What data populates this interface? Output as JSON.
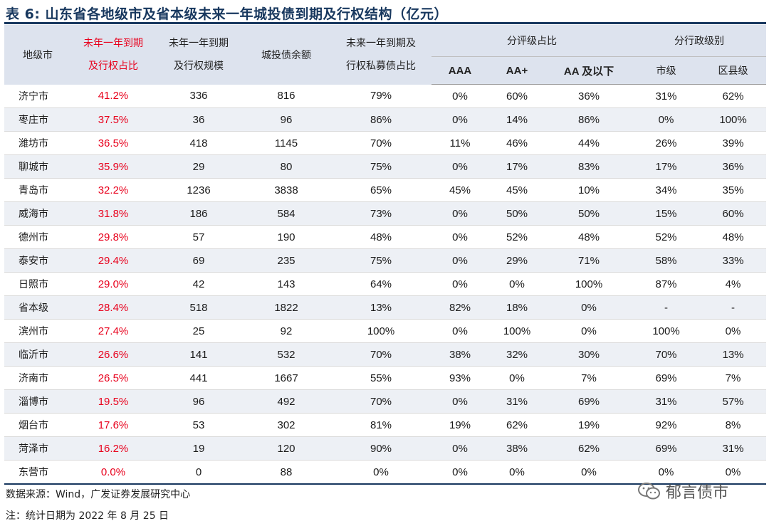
{
  "title": "表 6:  山东省各地级市及省本级未来一年城投债到期及行权结构（亿元）",
  "headers": {
    "city": "地级市",
    "ratio_line1": "未年一年到期",
    "ratio_line2": "及行权占比",
    "scale_line1": "未年一年到期",
    "scale_line2": "及行权规模",
    "balance": "城投债余额",
    "private_line1": "未来一年到期及",
    "private_line2": "行权私募债占比",
    "rating_group": "分评级占比",
    "rating_aaa": "AAA",
    "rating_aaplus": "AA+",
    "rating_aa_below": "AA 及以下",
    "admin_group": "分行政级别",
    "admin_city": "市级",
    "admin_county": "区县级"
  },
  "rows": [
    {
      "city": "济宁市",
      "ratio": "41.2%",
      "scale": "336",
      "balance": "816",
      "private": "79%",
      "aaa": "0%",
      "aaplus": "60%",
      "aabelow": "36%",
      "citylevel": "31%",
      "county": "62%"
    },
    {
      "city": "枣庄市",
      "ratio": "37.5%",
      "scale": "36",
      "balance": "96",
      "private": "86%",
      "aaa": "0%",
      "aaplus": "14%",
      "aabelow": "86%",
      "citylevel": "0%",
      "county": "100%"
    },
    {
      "city": "潍坊市",
      "ratio": "36.5%",
      "scale": "418",
      "balance": "1145",
      "private": "70%",
      "aaa": "11%",
      "aaplus": "46%",
      "aabelow": "44%",
      "citylevel": "26%",
      "county": "39%"
    },
    {
      "city": "聊城市",
      "ratio": "35.9%",
      "scale": "29",
      "balance": "80",
      "private": "75%",
      "aaa": "0%",
      "aaplus": "17%",
      "aabelow": "83%",
      "citylevel": "17%",
      "county": "36%"
    },
    {
      "city": "青岛市",
      "ratio": "32.2%",
      "scale": "1236",
      "balance": "3838",
      "private": "65%",
      "aaa": "45%",
      "aaplus": "45%",
      "aabelow": "10%",
      "citylevel": "34%",
      "county": "35%"
    },
    {
      "city": "威海市",
      "ratio": "31.8%",
      "scale": "186",
      "balance": "584",
      "private": "73%",
      "aaa": "0%",
      "aaplus": "50%",
      "aabelow": "50%",
      "citylevel": "15%",
      "county": "60%"
    },
    {
      "city": "德州市",
      "ratio": "29.8%",
      "scale": "57",
      "balance": "190",
      "private": "48%",
      "aaa": "0%",
      "aaplus": "52%",
      "aabelow": "48%",
      "citylevel": "52%",
      "county": "48%"
    },
    {
      "city": "泰安市",
      "ratio": "29.4%",
      "scale": "69",
      "balance": "235",
      "private": "75%",
      "aaa": "0%",
      "aaplus": "29%",
      "aabelow": "71%",
      "citylevel": "58%",
      "county": "33%"
    },
    {
      "city": "日照市",
      "ratio": "29.0%",
      "scale": "42",
      "balance": "143",
      "private": "64%",
      "aaa": "0%",
      "aaplus": "0%",
      "aabelow": "100%",
      "citylevel": "87%",
      "county": "4%"
    },
    {
      "city": "省本级",
      "ratio": "28.4%",
      "scale": "518",
      "balance": "1822",
      "private": "13%",
      "aaa": "82%",
      "aaplus": "18%",
      "aabelow": "0%",
      "citylevel": "-",
      "county": "-"
    },
    {
      "city": "滨州市",
      "ratio": "27.4%",
      "scale": "25",
      "balance": "92",
      "private": "100%",
      "aaa": "0%",
      "aaplus": "100%",
      "aabelow": "0%",
      "citylevel": "100%",
      "county": "0%"
    },
    {
      "city": "临沂市",
      "ratio": "26.6%",
      "scale": "141",
      "balance": "532",
      "private": "70%",
      "aaa": "38%",
      "aaplus": "32%",
      "aabelow": "30%",
      "citylevel": "70%",
      "county": "13%"
    },
    {
      "city": "济南市",
      "ratio": "26.5%",
      "scale": "441",
      "balance": "1667",
      "private": "55%",
      "aaa": "93%",
      "aaplus": "0%",
      "aabelow": "7%",
      "citylevel": "69%",
      "county": "7%"
    },
    {
      "city": "淄博市",
      "ratio": "19.5%",
      "scale": "96",
      "balance": "492",
      "private": "70%",
      "aaa": "0%",
      "aaplus": "31%",
      "aabelow": "69%",
      "citylevel": "31%",
      "county": "57%"
    },
    {
      "city": "烟台市",
      "ratio": "17.6%",
      "scale": "53",
      "balance": "302",
      "private": "81%",
      "aaa": "19%",
      "aaplus": "62%",
      "aabelow": "19%",
      "citylevel": "92%",
      "county": "8%"
    },
    {
      "city": "菏泽市",
      "ratio": "16.2%",
      "scale": "19",
      "balance": "120",
      "private": "90%",
      "aaa": "0%",
      "aaplus": "38%",
      "aabelow": "62%",
      "citylevel": "69%",
      "county": "31%"
    },
    {
      "city": "东营市",
      "ratio": "0.0%",
      "scale": "0",
      "balance": "88",
      "private": "0%",
      "aaa": "0%",
      "aaplus": "0%",
      "aabelow": "0%",
      "citylevel": "0%",
      "county": "0%"
    }
  ],
  "source": "数据来源：Wind，广发证券发展研究中心",
  "note": "注：统计日期为 2022 年 8 月 25 日",
  "watermark": "郁言债市",
  "colors": {
    "title": "#17375e",
    "highlight": "#e8001c",
    "header_bg": "#dde3ee"
  }
}
